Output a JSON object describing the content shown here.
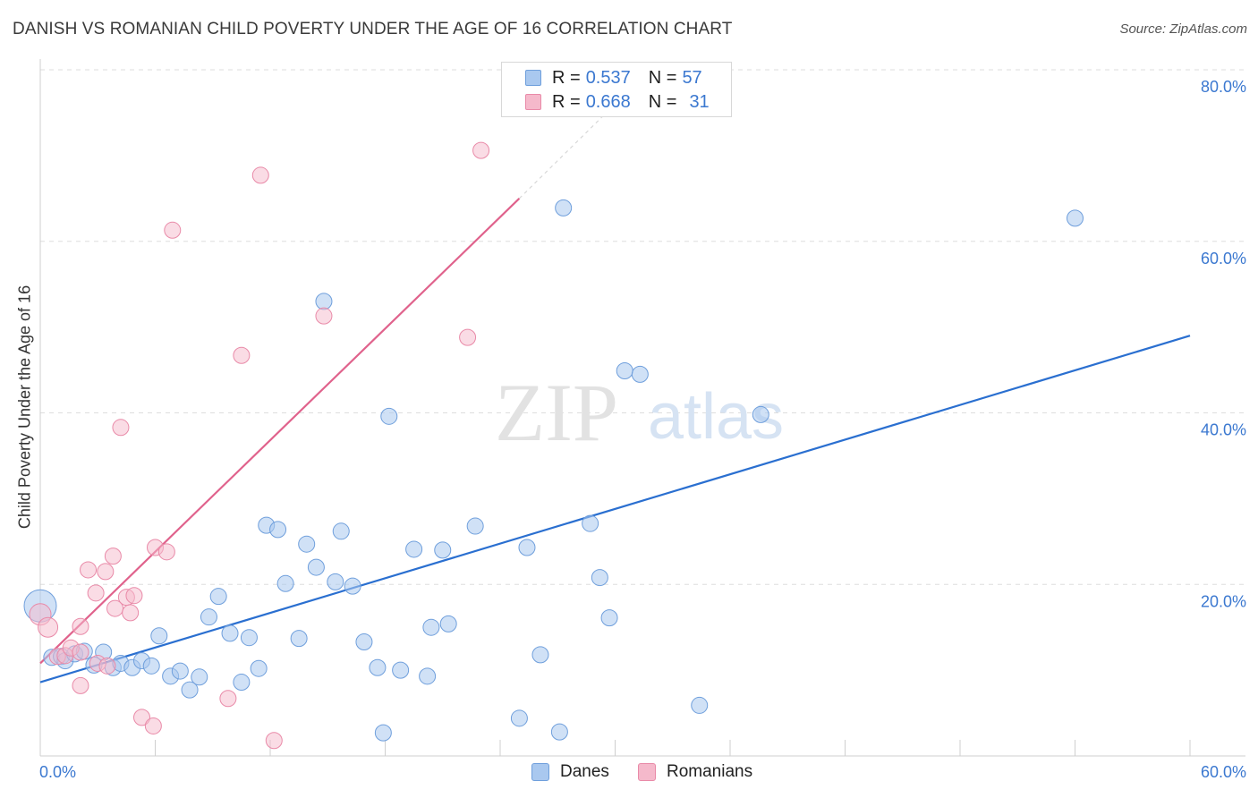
{
  "title": "DANISH VS ROMANIAN CHILD POVERTY UNDER THE AGE OF 16 CORRELATION CHART",
  "source": "Source: ZipAtlas.com",
  "watermark": {
    "zip": "ZIP",
    "atlas": "atlas"
  },
  "legend": {
    "danes": {
      "r_label": "R =",
      "r_value": "0.537",
      "n_label": "N =",
      "n_value": "57"
    },
    "romanians": {
      "r_label": "R =",
      "r_value": "0.668",
      "n_label": "N =",
      "n_value": "31"
    }
  },
  "bottom_legend": {
    "danes": "Danes",
    "romanians": "Romanians"
  },
  "colors": {
    "danes_fill": "#a9c8ef",
    "danes_stroke": "#6f9fdc",
    "danes_line": "#2a6fd0",
    "romanians_fill": "#f5b9cb",
    "romanians_stroke": "#e98aa8",
    "romanians_line": "#e0628c",
    "axis_text": "#3b78d0",
    "grid": "#dedede"
  },
  "chart_data": {
    "type": "scatter",
    "title": "DANISH VS ROMANIAN CHILD POVERTY UNDER THE AGE OF 16 CORRELATION CHART",
    "xlabel": "",
    "ylabel": "Child Poverty Under the Age of 16",
    "xlim": [
      0,
      60
    ],
    "ylim": [
      0,
      80
    ],
    "x_tick_labels": [
      "0.0%",
      "60.0%"
    ],
    "y_tick_labels": [
      "20.0%",
      "40.0%",
      "60.0%",
      "80.0%"
    ],
    "y_ticks": [
      20,
      40,
      60,
      80
    ],
    "series": [
      {
        "name": "Danes",
        "r": 0.537,
        "n": 57,
        "trend": {
          "x": [
            0,
            60
          ],
          "y": [
            8.6,
            49.0
          ]
        },
        "points": [
          {
            "x": 0.0,
            "y": 17.5,
            "s": 18
          },
          {
            "x": 0.6,
            "y": 11.5,
            "s": 9
          },
          {
            "x": 1.1,
            "y": 11.6,
            "s": 9
          },
          {
            "x": 1.3,
            "y": 11.1,
            "s": 9
          },
          {
            "x": 1.8,
            "y": 11.9,
            "s": 9
          },
          {
            "x": 2.3,
            "y": 12.2,
            "s": 9
          },
          {
            "x": 2.8,
            "y": 10.6,
            "s": 9
          },
          {
            "x": 3.3,
            "y": 12.1,
            "s": 9
          },
          {
            "x": 3.8,
            "y": 10.3,
            "s": 9
          },
          {
            "x": 4.2,
            "y": 10.8,
            "s": 9
          },
          {
            "x": 4.8,
            "y": 10.3,
            "s": 9
          },
          {
            "x": 5.3,
            "y": 11.1,
            "s": 9
          },
          {
            "x": 5.8,
            "y": 10.5,
            "s": 9
          },
          {
            "x": 6.2,
            "y": 14.0,
            "s": 9
          },
          {
            "x": 6.8,
            "y": 9.3,
            "s": 9
          },
          {
            "x": 7.3,
            "y": 9.9,
            "s": 9
          },
          {
            "x": 7.8,
            "y": 7.7,
            "s": 9
          },
          {
            "x": 8.3,
            "y": 9.2,
            "s": 9
          },
          {
            "x": 8.8,
            "y": 16.2,
            "s": 9
          },
          {
            "x": 9.3,
            "y": 18.6,
            "s": 9
          },
          {
            "x": 9.9,
            "y": 14.3,
            "s": 9
          },
          {
            "x": 10.5,
            "y": 8.6,
            "s": 9
          },
          {
            "x": 10.9,
            "y": 13.8,
            "s": 9
          },
          {
            "x": 11.4,
            "y": 10.2,
            "s": 9
          },
          {
            "x": 11.8,
            "y": 26.9,
            "s": 9
          },
          {
            "x": 12.4,
            "y": 26.4,
            "s": 9
          },
          {
            "x": 12.8,
            "y": 20.1,
            "s": 9
          },
          {
            "x": 13.5,
            "y": 13.7,
            "s": 9
          },
          {
            "x": 13.9,
            "y": 24.7,
            "s": 9
          },
          {
            "x": 14.4,
            "y": 22.0,
            "s": 9
          },
          {
            "x": 14.8,
            "y": 53.0,
            "s": 9
          },
          {
            "x": 15.4,
            "y": 20.3,
            "s": 9
          },
          {
            "x": 15.7,
            "y": 26.2,
            "s": 9
          },
          {
            "x": 16.3,
            "y": 19.8,
            "s": 9
          },
          {
            "x": 16.9,
            "y": 13.3,
            "s": 9
          },
          {
            "x": 17.6,
            "y": 10.3,
            "s": 9
          },
          {
            "x": 17.9,
            "y": 2.7,
            "s": 9
          },
          {
            "x": 18.2,
            "y": 39.6,
            "s": 9
          },
          {
            "x": 18.8,
            "y": 10.0,
            "s": 9
          },
          {
            "x": 19.5,
            "y": 24.1,
            "s": 9
          },
          {
            "x": 20.2,
            "y": 9.3,
            "s": 9
          },
          {
            "x": 20.4,
            "y": 15.0,
            "s": 9
          },
          {
            "x": 21.3,
            "y": 15.4,
            "s": 9
          },
          {
            "x": 21.0,
            "y": 24.0,
            "s": 9
          },
          {
            "x": 22.7,
            "y": 26.8,
            "s": 9
          },
          {
            "x": 25.0,
            "y": 4.4,
            "s": 9
          },
          {
            "x": 25.4,
            "y": 24.3,
            "s": 9
          },
          {
            "x": 26.1,
            "y": 11.8,
            "s": 9
          },
          {
            "x": 27.1,
            "y": 2.8,
            "s": 9
          },
          {
            "x": 27.3,
            "y": 63.9,
            "s": 9
          },
          {
            "x": 28.7,
            "y": 27.1,
            "s": 9
          },
          {
            "x": 29.2,
            "y": 20.8,
            "s": 9
          },
          {
            "x": 29.7,
            "y": 16.1,
            "s": 9
          },
          {
            "x": 30.5,
            "y": 44.9,
            "s": 9
          },
          {
            "x": 31.3,
            "y": 44.5,
            "s": 9
          },
          {
            "x": 34.4,
            "y": 5.9,
            "s": 9
          },
          {
            "x": 37.6,
            "y": 39.8,
            "s": 9
          },
          {
            "x": 54.0,
            "y": 62.7,
            "s": 9
          }
        ]
      },
      {
        "name": "Romanians",
        "r": 0.668,
        "n": 31,
        "trend": {
          "x": [
            0,
            25
          ],
          "y": [
            10.8,
            65.0
          ]
        },
        "trend_dashed": {
          "x": [
            25,
            30
          ],
          "y": [
            65.0,
            76.0
          ]
        },
        "points": [
          {
            "x": 0.0,
            "y": 16.5,
            "s": 12
          },
          {
            "x": 0.4,
            "y": 15.0,
            "s": 11
          },
          {
            "x": 0.9,
            "y": 11.6,
            "s": 9
          },
          {
            "x": 1.3,
            "y": 11.7,
            "s": 9
          },
          {
            "x": 1.6,
            "y": 12.6,
            "s": 9
          },
          {
            "x": 2.1,
            "y": 12.1,
            "s": 9
          },
          {
            "x": 2.1,
            "y": 8.2,
            "s": 9
          },
          {
            "x": 2.1,
            "y": 15.1,
            "s": 9
          },
          {
            "x": 2.5,
            "y": 21.7,
            "s": 9
          },
          {
            "x": 2.9,
            "y": 19.0,
            "s": 9
          },
          {
            "x": 3.0,
            "y": 10.8,
            "s": 9
          },
          {
            "x": 3.4,
            "y": 21.5,
            "s": 9
          },
          {
            "x": 3.8,
            "y": 23.3,
            "s": 9
          },
          {
            "x": 3.9,
            "y": 17.2,
            "s": 9
          },
          {
            "x": 4.2,
            "y": 38.3,
            "s": 9
          },
          {
            "x": 4.5,
            "y": 18.5,
            "s": 9
          },
          {
            "x": 4.7,
            "y": 16.7,
            "s": 9
          },
          {
            "x": 4.9,
            "y": 18.7,
            "s": 9
          },
          {
            "x": 5.3,
            "y": 4.5,
            "s": 9
          },
          {
            "x": 5.9,
            "y": 3.5,
            "s": 9
          },
          {
            "x": 6.0,
            "y": 24.3,
            "s": 9
          },
          {
            "x": 6.6,
            "y": 23.8,
            "s": 9
          },
          {
            "x": 6.9,
            "y": 61.3,
            "s": 9
          },
          {
            "x": 9.8,
            "y": 6.7,
            "s": 9
          },
          {
            "x": 10.5,
            "y": 46.7,
            "s": 9
          },
          {
            "x": 11.5,
            "y": 67.7,
            "s": 9
          },
          {
            "x": 12.2,
            "y": 1.8,
            "s": 9
          },
          {
            "x": 14.8,
            "y": 51.3,
            "s": 9
          },
          {
            "x": 22.3,
            "y": 48.8,
            "s": 9
          },
          {
            "x": 23.0,
            "y": 70.6,
            "s": 9
          },
          {
            "x": 3.5,
            "y": 10.5,
            "s": 9
          }
        ]
      }
    ]
  }
}
